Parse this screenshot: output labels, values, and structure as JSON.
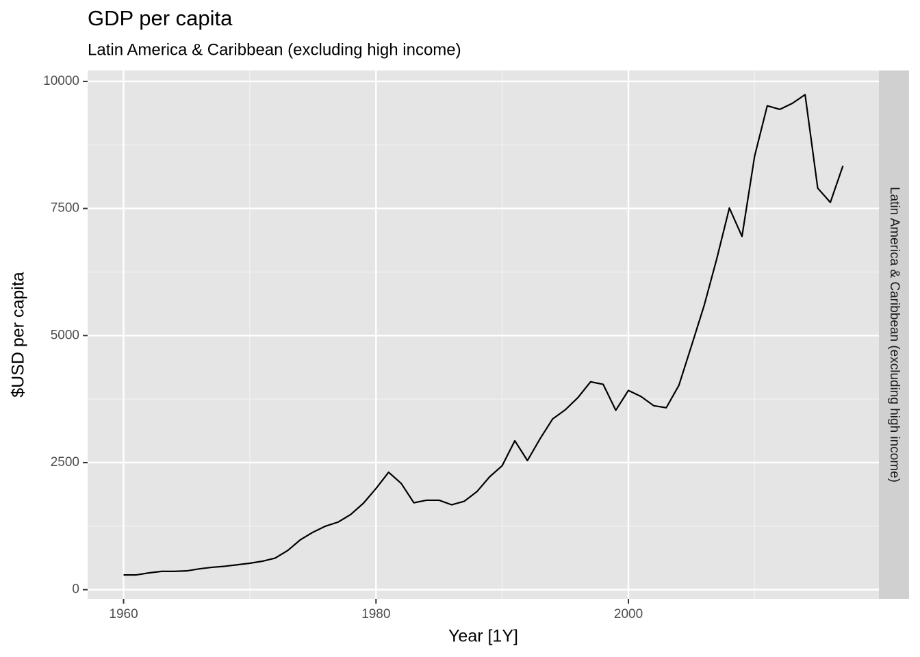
{
  "chart_data": {
    "type": "line",
    "title": "GDP per capita",
    "subtitle": "Latin America & Caribbean (excluding high income)",
    "facet_label": "Latin America & Caribbean (excluding high income)",
    "x_label": "Year [1Y]",
    "y_label": "$USD per capita",
    "x": [
      1960,
      1961,
      1962,
      1963,
      1964,
      1965,
      1966,
      1967,
      1968,
      1969,
      1970,
      1971,
      1972,
      1973,
      1974,
      1975,
      1976,
      1977,
      1978,
      1979,
      1980,
      1981,
      1982,
      1983,
      1984,
      1985,
      1986,
      1987,
      1988,
      1989,
      1990,
      1991,
      1992,
      1993,
      1994,
      1995,
      1996,
      1997,
      1998,
      1999,
      2000,
      2001,
      2002,
      2003,
      2004,
      2005,
      2006,
      2007,
      2008,
      2009,
      2010,
      2011,
      2012,
      2013,
      2014,
      2015,
      2016,
      2017
    ],
    "series": [
      {
        "color": "#000000",
        "values": [
          290,
          290,
          330,
          360,
          360,
          370,
          410,
          440,
          460,
          490,
          520,
          560,
          620,
          770,
          980,
          1130,
          1250,
          1330,
          1480,
          1700,
          1990,
          2310,
          2090,
          1710,
          1760,
          1760,
          1670,
          1740,
          1930,
          2220,
          2440,
          2930,
          2540,
          2970,
          3360,
          3540,
          3780,
          4090,
          4040,
          3530,
          3920,
          3800,
          3620,
          3580,
          4020,
          4800,
          5590,
          6510,
          7510,
          6950,
          8530,
          9520,
          9450,
          9570,
          9740,
          7900,
          7620,
          8340
        ]
      }
    ],
    "xlim": [
      1957.15,
      2019.85
    ],
    "xticks": [
      1960,
      1980,
      2000
    ],
    "ylim": [
      -180,
      10215
    ],
    "yticks": [
      0,
      2500,
      5000,
      7500,
      10000
    ],
    "grid": true
  }
}
